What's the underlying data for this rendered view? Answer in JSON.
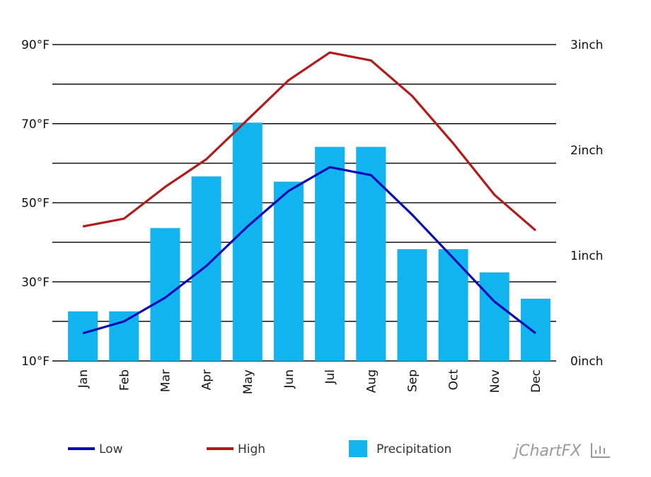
{
  "chart_data": {
    "type": "bar",
    "categories": [
      "Jan",
      "Feb",
      "Mar",
      "Apr",
      "May",
      "Jun",
      "Jul",
      "Aug",
      "Sep",
      "Oct",
      "Nov",
      "Dec"
    ],
    "series": [
      {
        "name": "Low",
        "type": "line",
        "axis": "left",
        "color": "#0a0ab4",
        "values": [
          17,
          20,
          26,
          34,
          44,
          53,
          59,
          57,
          47,
          36,
          25,
          17
        ]
      },
      {
        "name": "High",
        "type": "line",
        "axis": "left",
        "color": "#b01c1c",
        "values": [
          44,
          46,
          54,
          61,
          71,
          81,
          88,
          86,
          77,
          65,
          52,
          43
        ]
      },
      {
        "name": "Precipitation",
        "type": "bar",
        "axis": "right",
        "color": "#12b4f0",
        "values": [
          0.47,
          0.47,
          1.26,
          1.75,
          2.26,
          1.7,
          2.03,
          2.03,
          1.06,
          1.06,
          0.84,
          0.59
        ]
      }
    ],
    "left_axis": {
      "min": 10,
      "max": 90,
      "gridline_step": 10,
      "ticks": [
        {
          "value": 90,
          "label": "90°F"
        },
        {
          "value": 70,
          "label": "70°F"
        },
        {
          "value": 50,
          "label": "50°F"
        },
        {
          "value": 30,
          "label": "30°F"
        },
        {
          "value": 10,
          "label": "10°F"
        }
      ]
    },
    "right_axis": {
      "min": 0,
      "max": 3,
      "ticks": [
        {
          "value": 3,
          "label": "3inch"
        },
        {
          "value": 2,
          "label": "2inch"
        },
        {
          "value": 1,
          "label": "1inch"
        },
        {
          "value": 0,
          "label": "0inch"
        }
      ]
    },
    "legend": {
      "position": "bottom",
      "items": [
        {
          "name": "Low",
          "symbol": "line",
          "color": "#0a0ab4"
        },
        {
          "name": "High",
          "symbol": "line",
          "color": "#b01c1c"
        },
        {
          "name": "Precipitation",
          "symbol": "box",
          "color": "#12b4f0"
        }
      ]
    },
    "grid": true,
    "title": "",
    "xlabel": "",
    "ylabel": ""
  },
  "branding": {
    "text": "jChartFX"
  }
}
